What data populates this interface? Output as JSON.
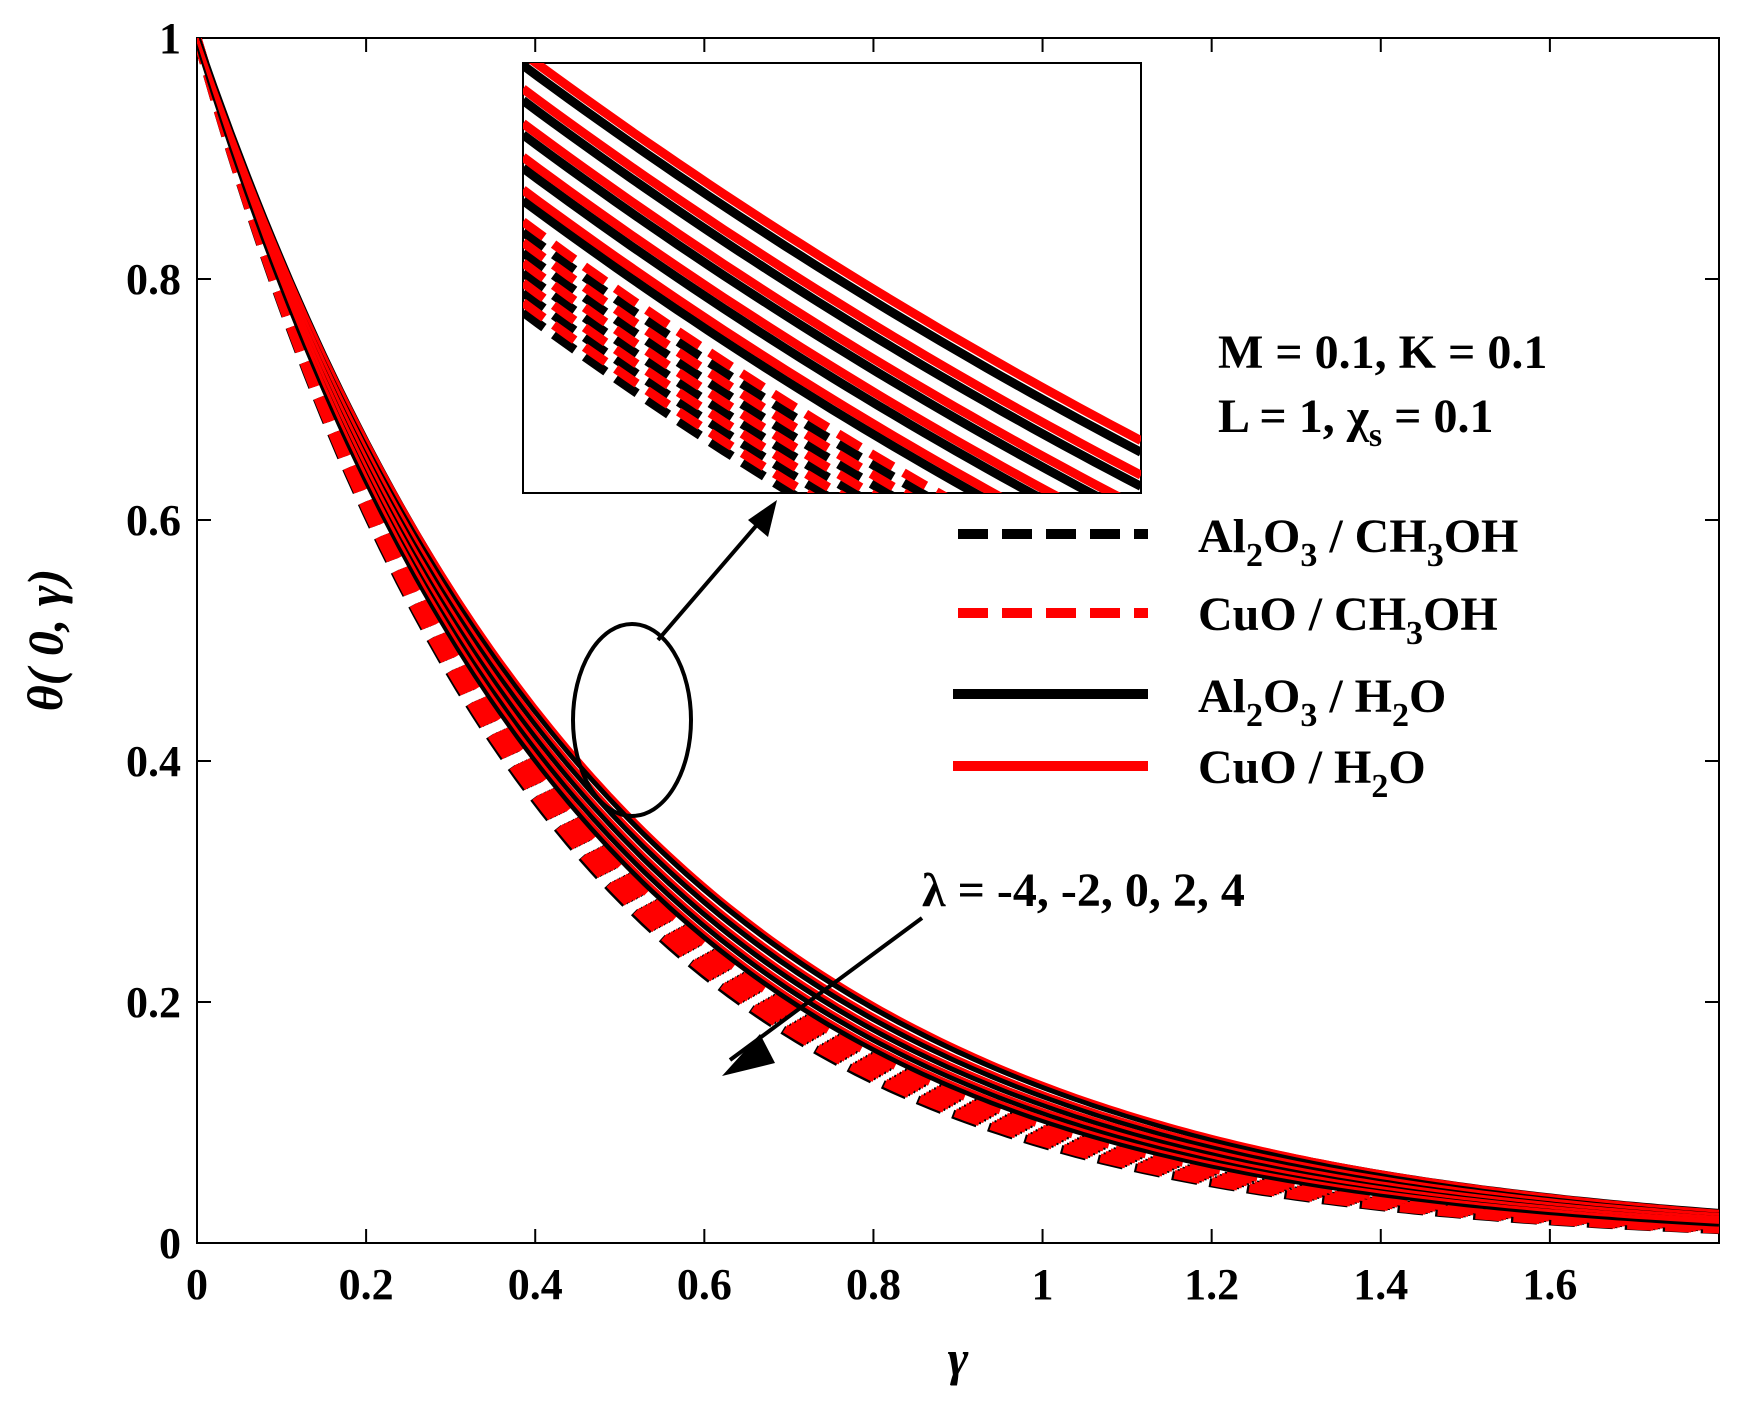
{
  "chart_data": {
    "type": "line",
    "title": "",
    "xlabel": "γ",
    "ylabel": "θ( 0, γ)",
    "xlim": [
      0,
      1.8
    ],
    "ylim": [
      0,
      1
    ],
    "xticks": [
      "0",
      "0.2",
      "0.4",
      "0.6",
      "0.8",
      "1",
      "1.2",
      "1.4",
      "1.6"
    ],
    "yticks": [
      "0",
      "0.2",
      "0.4",
      "0.6",
      "0.8",
      "1"
    ],
    "parameters": {
      "line1": "M = 0.1, K = 0.1",
      "line2_prefix": "L = 1, χ",
      "line2_sub": "s",
      "line2_suffix": " = 0.1"
    },
    "lambda_values": [
      -4,
      -2,
      0,
      2,
      4
    ],
    "lambda_label": "λ = -4, -2, 0, 2, 4",
    "legend": [
      {
        "name": "Al2O3 / CH3OH",
        "color": "#000000",
        "dash": true
      },
      {
        "name": "CuO / CH3OH",
        "color": "#ff0000",
        "dash": true
      },
      {
        "name": "Al2O3 / H2O",
        "color": "#000000",
        "dash": false
      },
      {
        "name": "CuO / H2O",
        "color": "#ff0000",
        "dash": false
      }
    ],
    "series": [
      {
        "name": "Al2O3 / CH3OH",
        "lambda": -4,
        "decay": 2.5
      },
      {
        "name": "Al2O3 / CH3OH",
        "lambda": -2,
        "decay": 2.46
      },
      {
        "name": "Al2O3 / CH3OH",
        "lambda": 0,
        "decay": 2.42
      },
      {
        "name": "Al2O3 / CH3OH",
        "lambda": 2,
        "decay": 2.38
      },
      {
        "name": "Al2O3 / CH3OH",
        "lambda": 4,
        "decay": 2.34
      },
      {
        "name": "CuO / CH3OH",
        "lambda": -4,
        "decay": 2.48
      },
      {
        "name": "CuO / CH3OH",
        "lambda": -2,
        "decay": 2.44
      },
      {
        "name": "CuO / CH3OH",
        "lambda": 0,
        "decay": 2.4
      },
      {
        "name": "CuO / CH3OH",
        "lambda": 2,
        "decay": 2.36
      },
      {
        "name": "CuO / CH3OH",
        "lambda": 4,
        "decay": 2.32
      },
      {
        "name": "Al2O3 / H2O",
        "lambda": -4,
        "decay": 2.28
      },
      {
        "name": "Al2O3 / H2O",
        "lambda": -2,
        "decay": 2.22
      },
      {
        "name": "Al2O3 / H2O",
        "lambda": 0,
        "decay": 2.16
      },
      {
        "name": "Al2O3 / H2O",
        "lambda": 2,
        "decay": 2.1
      },
      {
        "name": "Al2O3 / H2O",
        "lambda": 4,
        "decay": 2.04
      },
      {
        "name": "CuO / H2O",
        "lambda": -4,
        "decay": 2.26
      },
      {
        "name": "CuO / H2O",
        "lambda": -2,
        "decay": 2.2
      },
      {
        "name": "CuO / H2O",
        "lambda": 0,
        "decay": 2.14
      },
      {
        "name": "CuO / H2O",
        "lambda": 2,
        "decay": 2.08
      },
      {
        "name": "CuO / H2O",
        "lambda": 4,
        "decay": 2.02
      }
    ]
  }
}
